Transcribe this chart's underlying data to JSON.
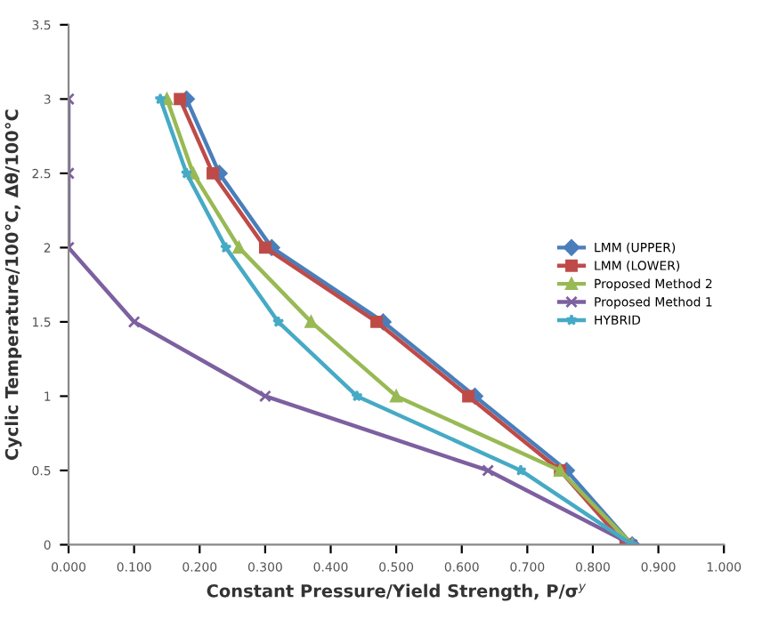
{
  "chart_data": {
    "type": "line",
    "xlabel": "Constant Pressure/Yield Strength, P/σ$^{y}$",
    "ylabel": "Cyclic Temperature/100°C, Δθ/100°C",
    "xlim": [
      0,
      1
    ],
    "ylim": [
      0,
      3.5
    ],
    "xticks": [
      {
        "value": 0,
        "label": "0.000"
      },
      {
        "value": 0.1,
        "label": "0.100"
      },
      {
        "value": 0.2,
        "label": "0.200"
      },
      {
        "value": 0.3,
        "label": "0.300"
      },
      {
        "value": 0.4,
        "label": "0.400"
      },
      {
        "value": 0.5,
        "label": "0.500"
      },
      {
        "value": 0.6,
        "label": "0.600"
      },
      {
        "value": 0.7,
        "label": "0.700"
      },
      {
        "value": 0.8,
        "label": "0.800"
      },
      {
        "value": 0.9,
        "label": "0.900"
      },
      {
        "value": 1,
        "label": "1.000"
      }
    ],
    "yticks": [
      0,
      0.5,
      1,
      1.5,
      2,
      2.5,
      3,
      3.5
    ],
    "grid": false,
    "legend": "center right",
    "line_style": "solid",
    "series": [
      {
        "name": "LMM (UPPER)",
        "color": "#4a7ebb",
        "marker": "diamond",
        "x": [
          0.18,
          0.23,
          0.31,
          0.48,
          0.62,
          0.76,
          0.86
        ],
        "values": [
          3,
          2.5,
          2,
          1.5,
          1,
          0.5,
          0
        ]
      },
      {
        "name": "LMM (LOWER)",
        "color": "#be4b48",
        "marker": "square",
        "x": [
          0.17,
          0.22,
          0.3,
          0.47,
          0.61,
          0.75,
          0.85
        ],
        "values": [
          3,
          2.5,
          2,
          1.5,
          1,
          0.5,
          0
        ]
      },
      {
        "name": "Proposed Method 2",
        "color": "#98b954",
        "marker": "triangle",
        "x": [
          0.15,
          0.19,
          0.26,
          0.37,
          0.5,
          0.75,
          0.86
        ],
        "values": [
          3,
          2.5,
          2,
          1.5,
          1,
          0.5,
          0
        ]
      },
      {
        "name": "Proposed Method 1",
        "color": "#7d60a0",
        "marker": "cross",
        "x": [
          0,
          0,
          0,
          0.1,
          0.3,
          0.64,
          0.86
        ],
        "values": [
          3,
          2.5,
          2,
          1.5,
          1,
          0.5,
          0
        ]
      },
      {
        "name": "HYBRID",
        "color": "#46aac5",
        "marker": "star",
        "x": [
          0.14,
          0.18,
          0.24,
          0.32,
          0.44,
          0.69,
          0.86
        ],
        "values": [
          3,
          2.5,
          2,
          1.5,
          1,
          0.5,
          0
        ]
      }
    ]
  }
}
